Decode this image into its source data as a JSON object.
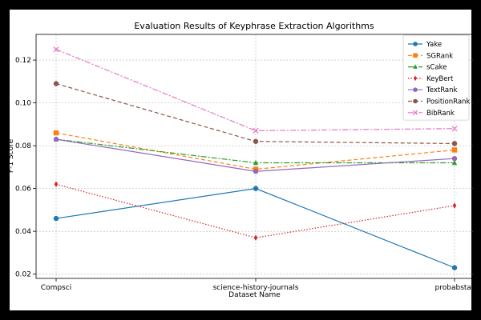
{
  "chart_data": {
    "type": "line",
    "title": "Evaluation Results of Keyphrase Extraction Algorithms",
    "xlabel": "Dataset Name",
    "ylabel": "F-1 Score",
    "categories": [
      "Compsci",
      "science-history-journals",
      "probabstat"
    ],
    "ylim": [
      0.018,
      0.132
    ],
    "yticks": [
      0.02,
      0.04,
      0.06,
      0.08,
      0.1,
      0.12
    ],
    "ytick_labels": [
      "0.02",
      "0.04",
      "0.06",
      "0.08",
      "0.10",
      "0.12"
    ],
    "grid": true,
    "legend_position": "top-right",
    "series": [
      {
        "name": "Yake",
        "values": [
          0.046,
          0.06,
          0.023
        ],
        "color": "#1f77b4",
        "marker": "circle",
        "dash": ""
      },
      {
        "name": "SGRank",
        "values": [
          0.086,
          0.069,
          0.078
        ],
        "color": "#ff7f0e",
        "marker": "square",
        "dash": "5,3"
      },
      {
        "name": "sCake",
        "values": [
          0.083,
          0.072,
          0.072
        ],
        "color": "#2ca02c",
        "marker": "triangle",
        "dash": "7,2,2,2"
      },
      {
        "name": "KeyBert",
        "values": [
          0.062,
          0.037,
          0.052
        ],
        "color": "#d62728",
        "marker": "diamond",
        "dash": "1.5,2"
      },
      {
        "name": "TextRank",
        "values": [
          0.083,
          0.068,
          0.074
        ],
        "color": "#9467bd",
        "marker": "circle",
        "dash": ""
      },
      {
        "name": "PositionRank",
        "values": [
          0.109,
          0.082,
          0.081
        ],
        "color": "#8c564b",
        "marker": "circle",
        "dash": "5,3"
      },
      {
        "name": "BibRank",
        "values": [
          0.125,
          0.087,
          0.088
        ],
        "color": "#e377c2",
        "marker": "x",
        "dash": "7,2,2,2"
      }
    ]
  }
}
